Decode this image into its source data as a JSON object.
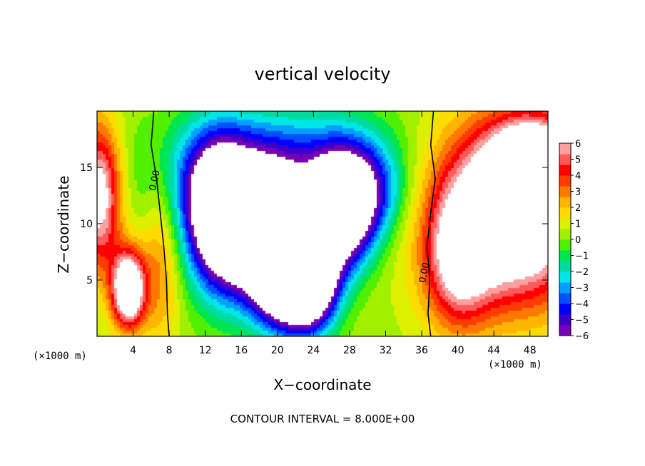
{
  "chart_data": {
    "type": "heatmap",
    "title": "vertical velocity",
    "xlabel": "X−coordinate",
    "ylabel": "Z−coordinate",
    "x_unit": "(×1000 m)",
    "z_unit": "(×1000 m)",
    "xlim": [
      0,
      50
    ],
    "ylim": [
      0,
      20
    ],
    "x_ticks": [
      "4",
      "8",
      "12",
      "16",
      "20",
      "24",
      "28",
      "32",
      "36",
      "40",
      "44",
      "48"
    ],
    "y_ticks": [
      "5",
      "10",
      "15"
    ],
    "colorbar": {
      "range": [
        -6,
        6
      ],
      "tick_labels": [
        "6",
        "5",
        "4",
        "3",
        "2",
        "1",
        "0",
        "−1",
        "−2",
        "−3",
        "−4",
        "−5",
        "−6"
      ],
      "colors": [
        "#7a00b4",
        "#3c00c8",
        "#0000ff",
        "#0050ff",
        "#00a0ff",
        "#00e6e6",
        "#00dca0",
        "#00e650",
        "#50f000",
        "#a0f000",
        "#dcf000",
        "#ffdc00",
        "#ffb400",
        "#ff7800",
        "#ff3c00",
        "#ff0000",
        "#ff5a5a",
        "#ffa0a0"
      ]
    },
    "contour_interval": "CONTOUR INTERVAL = 8.000E+00",
    "contour_labels": [
      "0.00",
      "0.00"
    ],
    "features": [
      {
        "kind": "updraft",
        "x": 3.5,
        "z": 4.2,
        "sx": 1.3,
        "sy": 2.4,
        "amp": 9
      },
      {
        "kind": "updraft",
        "x": 0.2,
        "z": 12.5,
        "sx": 1.8,
        "sy": 4.5,
        "amp": 7
      },
      {
        "kind": "updraft",
        "x": 46,
        "z": 11,
        "sx": 6,
        "sy": 5.5,
        "amp": 10
      },
      {
        "kind": "updraft",
        "x": 48.5,
        "z": 15.5,
        "sx": 3,
        "sy": 2.5,
        "amp": 6
      },
      {
        "kind": "updraft",
        "x": 40,
        "z": 6,
        "sx": 2.5,
        "sy": 4,
        "amp": 4
      },
      {
        "kind": "updraft",
        "x": 7,
        "z": 7,
        "sx": 1.5,
        "sy": 6,
        "amp": 2.5
      },
      {
        "kind": "downdraft",
        "x": 13.5,
        "z": 10.5,
        "sx": 2.5,
        "sy": 4.5,
        "amp": -9
      },
      {
        "kind": "downdraft",
        "x": 19,
        "z": 8.5,
        "sx": 3,
        "sy": 4,
        "amp": -10
      },
      {
        "kind": "downdraft",
        "x": 21.5,
        "z": 5,
        "sx": 2.5,
        "sy": 3,
        "amp": -9
      },
      {
        "kind": "downdraft",
        "x": 27,
        "z": 11,
        "sx": 2.5,
        "sy": 3.5,
        "amp": -9
      },
      {
        "kind": "downdraft",
        "x": 24,
        "z": 5,
        "sx": 2,
        "sy": 3,
        "amp": -7
      },
      {
        "kind": "downdraft",
        "x": 18,
        "z": 13,
        "sx": 8,
        "sy": 3.5,
        "amp": -4
      },
      {
        "kind": "downdraft",
        "x": 30,
        "z": 13,
        "sx": 3,
        "sy": 3,
        "amp": -3.5
      },
      {
        "kind": "downdraft",
        "x": 20,
        "z": 17,
        "sx": 9,
        "sy": 3,
        "amp": -2
      }
    ]
  }
}
